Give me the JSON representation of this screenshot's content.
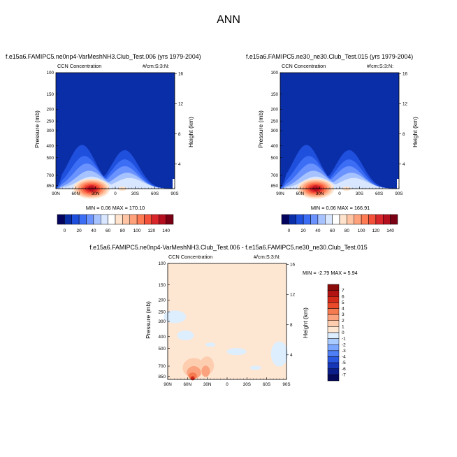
{
  "page": {
    "title": "ANN"
  },
  "panels": [
    {
      "title": "f.e15a6.FAMIPC5.ne0np4-VarMeshNH3.Club_Test.006 (yrs 1979-2004)",
      "left_label": "CCN Concentration",
      "right_label": "#/cm:S:3:N:",
      "ylabel": "Pressure (mb)",
      "y2label": "Height (km)",
      "min_max": "MIN =   0.06  MAX = 170.10"
    },
    {
      "title": "f.e15a6.FAMIPC5.ne30_ne30.Club_Test.015 (yrs 1979-2004)",
      "left_label": "CCN Concentration",
      "right_label": "#/cm:S:3:N:",
      "ylabel": "Pressure (mb)",
      "y2label": "Height (km)",
      "min_max": "MIN =   0.06  MAX = 166.91"
    },
    {
      "title": "f.e15a6.FAMIPC5.ne0np4-VarMeshNH3.Club_Test.006 - f.e15a6.FAMIPC5.ne30_ne30.Club_Test.015",
      "left_label": "CCN Concentration",
      "right_label": "#/cm:S:3:N:",
      "ylabel": "Pressure (mb)",
      "y2label": "Height (km)",
      "min_max": "MIN =  -2.79  MAX =   5.94"
    }
  ],
  "chart_data": [
    {
      "type": "heatmap",
      "title": "f.e15a6.FAMIPC5.ne0np4-VarMeshNH3.Club_Test.006 (yrs 1979-2004)",
      "x_ticks": [
        "90N",
        "60N",
        "30N",
        "0",
        "30S",
        "60S",
        "90S"
      ],
      "y_ticks": [
        "100",
        "150",
        "200",
        "250",
        "300",
        "400",
        "500",
        "700",
        "850"
      ],
      "y2_ticks": [
        "16",
        "12",
        "8",
        "4"
      ],
      "ylabel": "Pressure (mb)",
      "y2label": "Height (km)",
      "min": 0.06,
      "max": 170.1,
      "colorbar_labels": [
        "0",
        "20",
        "40",
        "60",
        "80",
        "100",
        "120",
        "140"
      ],
      "colorbar_colors": [
        "#04045e",
        "#0a2ea8",
        "#1f4fdd",
        "#3c6df5",
        "#6a93ff",
        "#a7c3ff",
        "#d8e6ff",
        "#ffffff",
        "#ffe3cc",
        "#ffc4a3",
        "#ffa17b",
        "#ff7b54",
        "#f4513a",
        "#d8262a",
        "#b50f1f",
        "#7a0013"
      ]
    },
    {
      "type": "heatmap",
      "title": "f.e15a6.FAMIPC5.ne30_ne30.Club_Test.015 (yrs 1979-2004)",
      "x_ticks": [
        "90N",
        "60N",
        "30N",
        "0",
        "30S",
        "60S",
        "90S"
      ],
      "y_ticks": [
        "100",
        "150",
        "200",
        "250",
        "300",
        "400",
        "500",
        "700",
        "850"
      ],
      "y2_ticks": [
        "16",
        "12",
        "8",
        "4"
      ],
      "ylabel": "Pressure (mb)",
      "y2label": "Height (km)",
      "min": 0.06,
      "max": 166.91,
      "colorbar_labels": [
        "0",
        "20",
        "40",
        "60",
        "80",
        "100",
        "120",
        "140"
      ],
      "colorbar_colors": [
        "#04045e",
        "#0a2ea8",
        "#1f4fdd",
        "#3c6df5",
        "#6a93ff",
        "#a7c3ff",
        "#d8e6ff",
        "#ffffff",
        "#ffe3cc",
        "#ffc4a3",
        "#ffa17b",
        "#ff7b54",
        "#f4513a",
        "#d8262a",
        "#b50f1f",
        "#7a0013"
      ]
    },
    {
      "type": "heatmap",
      "title": "f.e15a6.FAMIPC5.ne0np4-VarMeshNH3.Club_Test.006 - f.e15a6.FAMIPC5.ne30_ne30.Club_Test.015",
      "x_ticks": [
        "90N",
        "60N",
        "30N",
        "0",
        "30S",
        "60S",
        "90S"
      ],
      "y_ticks": [
        "100",
        "150",
        "200",
        "250",
        "300",
        "400",
        "500",
        "700",
        "850"
      ],
      "y2_ticks": [
        "16",
        "12",
        "8",
        "4"
      ],
      "ylabel": "Pressure (mb)",
      "y2label": "Height (km)",
      "min": -2.79,
      "max": 5.94,
      "colorbar_labels": [
        "7",
        "6",
        "5",
        "4",
        "3",
        "2",
        "1",
        "0",
        "-1",
        "-2",
        "-3",
        "-4",
        "-5",
        "-6",
        "-7"
      ],
      "colorbar_colors": [
        "#8b0a0a",
        "#b31212",
        "#d42a1a",
        "#ea4a2a",
        "#f57a50",
        "#fba37e",
        "#fdcdb0",
        "#fde6d2",
        "#ddeeff",
        "#a9cbff",
        "#7aa6ff",
        "#4f7ff5",
        "#2a57e0",
        "#1636b8",
        "#0b1e8a",
        "#050a5a"
      ]
    }
  ]
}
